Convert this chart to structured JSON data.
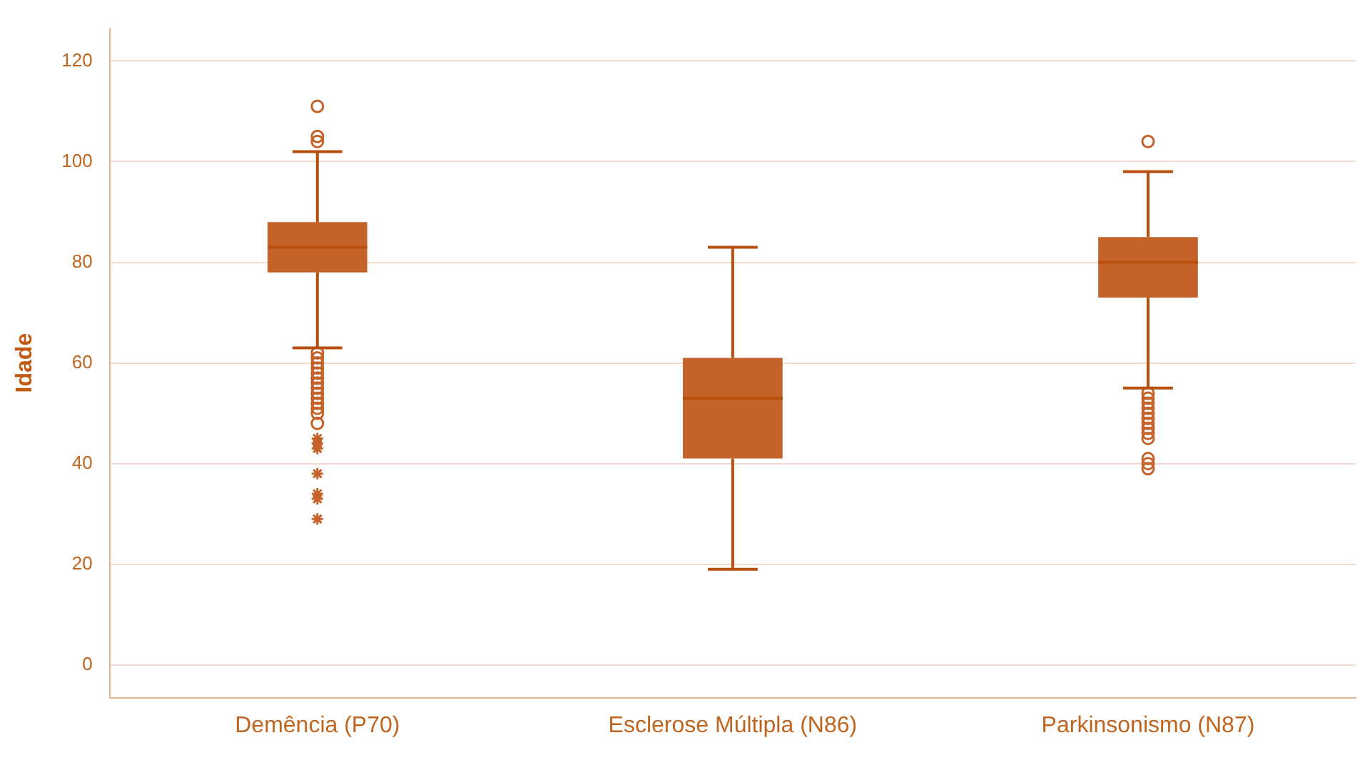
{
  "chart_data": {
    "type": "box",
    "ylabel": "Idade",
    "categories": [
      "Demência (P70)",
      "Esclerose Múltipla (N86)",
      "Parkinsonismo (N87)"
    ],
    "ylim": [
      -6.5,
      126.5
    ],
    "yticks": [
      0,
      20,
      40,
      60,
      80,
      100,
      120
    ],
    "grid": "y",
    "legend": false,
    "series": [
      {
        "color": "#c4622a",
        "boxes": [
          {
            "low": 63,
            "q1": 78,
            "median": 83,
            "q3": 88,
            "high": 102,
            "outliers": [
              111,
              105,
              104,
              62,
              61,
              60,
              59,
              58,
              57,
              56,
              55,
              54,
              53,
              52,
              51,
              50,
              48,
              45,
              44,
              43,
              38,
              34,
              33,
              29
            ]
          },
          {
            "low": 19,
            "q1": 41,
            "median": 53,
            "q3": 61,
            "high": 83
          },
          {
            "low": 55,
            "q1": 73,
            "median": 80,
            "q3": 85,
            "high": 98,
            "outliers": [
              104,
              54,
              53,
              52,
              51,
              50,
              49,
              48,
              47,
              46,
              45,
              41,
              40,
              39
            ]
          }
        ]
      }
    ]
  }
}
